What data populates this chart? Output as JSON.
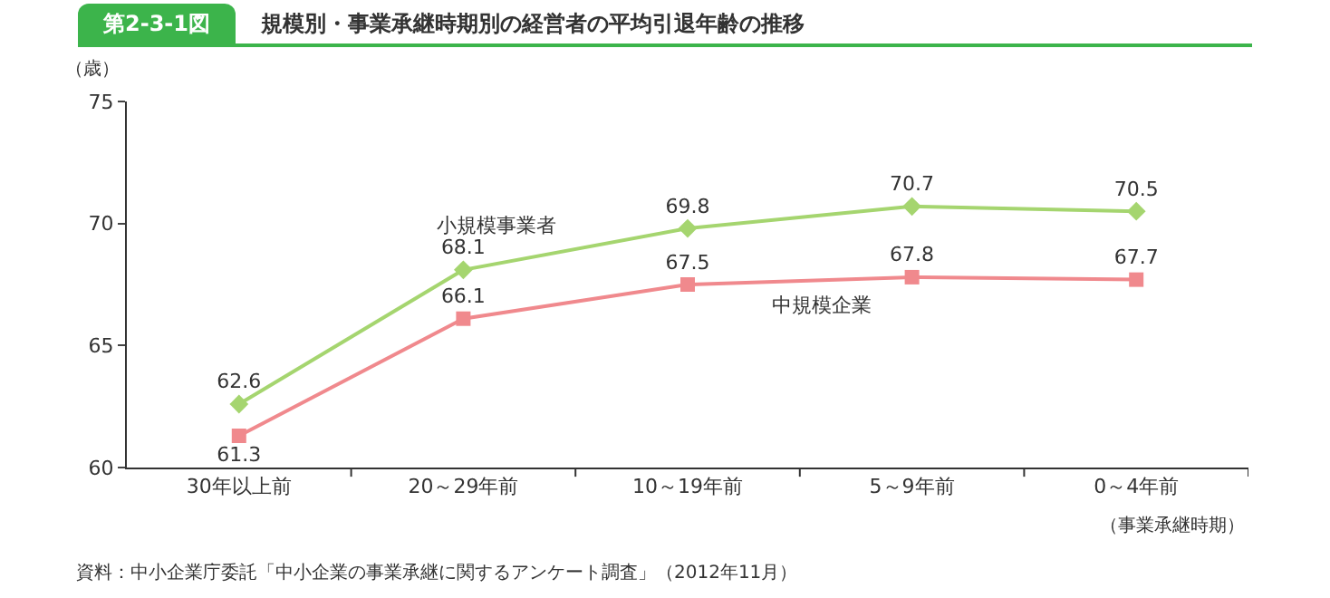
{
  "chart_data": {
    "type": "line",
    "title": "第2-3-1図",
    "subtitle": "規模別・事業承継時期別の経営者の平均引退年齢の推移",
    "ylabel": "（歳）",
    "xlabel": "（事業承継時期）",
    "categories": [
      "30年以上前",
      "20～29年前",
      "10～19年前",
      "5～9年前",
      "0～4年前"
    ],
    "series": [
      {
        "name": "小規模事業者",
        "color": "#a5d56f",
        "marker": "diamond",
        "values": [
          62.6,
          68.1,
          69.8,
          70.7,
          70.5
        ]
      },
      {
        "name": "中規模企業",
        "color": "#f0898d",
        "marker": "square",
        "values": [
          61.3,
          66.1,
          67.5,
          67.8,
          67.7
        ]
      }
    ],
    "ylim": [
      60,
      75
    ],
    "yticks": [
      60,
      65,
      70,
      75
    ],
    "grid": false,
    "legend": false,
    "data_labels": true,
    "annotations": [
      "資料：中小企業庁委託「中小企業の事業承継に関するアンケート調査」（2012年11月）"
    ]
  }
}
